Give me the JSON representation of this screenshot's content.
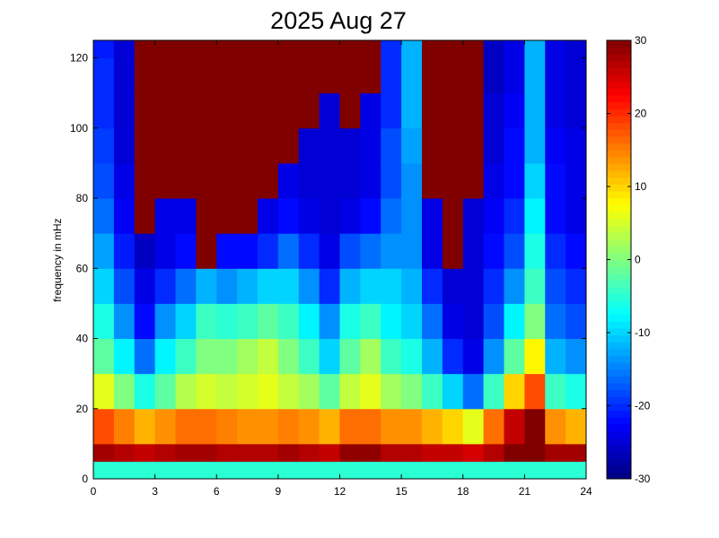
{
  "chart_data": {
    "type": "heatmap",
    "title": "2025 Aug 27",
    "xlabel": "",
    "ylabel": "frequency in mHz",
    "xlim": [
      0,
      24
    ],
    "ylim": [
      0,
      125
    ],
    "xticks": [
      0,
      3,
      6,
      9,
      12,
      15,
      18,
      21,
      24
    ],
    "yticks": [
      0,
      20,
      40,
      60,
      80,
      100,
      120
    ],
    "colorbar": {
      "range": [
        -30,
        30
      ],
      "ticks": [
        -30,
        -20,
        -10,
        0,
        10,
        20,
        30
      ],
      "colormap": "jet"
    },
    "grid": false,
    "time_bins_hours": [
      0,
      1,
      2,
      3,
      4,
      5,
      6,
      7,
      8,
      9,
      10,
      11,
      12,
      13,
      14,
      15,
      16,
      17,
      18,
      19,
      20,
      21,
      22,
      23
    ],
    "freq_bins_mhz": [
      0,
      5,
      10,
      20,
      30,
      40,
      50,
      60,
      70,
      80,
      90,
      100,
      110,
      120
    ],
    "values": [
      [
        -5,
        28,
        18,
        6,
        -2,
        -6,
        -10,
        -13,
        -16,
        -18,
        -19,
        -20,
        -20,
        -21
      ],
      [
        -5,
        27,
        15,
        0,
        -8,
        -14,
        -18,
        -21,
        -23,
        -24,
        -25,
        -25,
        -25,
        -25
      ],
      [
        -5,
        26,
        12,
        -6,
        -16,
        -22,
        -24,
        -26,
        30,
        30,
        30,
        30,
        30,
        30
      ],
      [
        -5,
        27,
        14,
        -2,
        -8,
        -14,
        -20,
        -24,
        -24,
        30,
        30,
        30,
        30,
        30
      ],
      [
        -5,
        28,
        16,
        3,
        -4,
        -10,
        -16,
        -22,
        -24,
        30,
        30,
        30,
        30,
        30
      ],
      [
        -5,
        28,
        16,
        5,
        0,
        -4,
        -12,
        30,
        30,
        30,
        30,
        30,
        30,
        30
      ],
      [
        -5,
        27,
        15,
        4,
        0,
        -5,
        -14,
        -22,
        30,
        30,
        30,
        30,
        30,
        30
      ],
      [
        -5,
        27,
        14,
        5,
        2,
        -4,
        -12,
        -22,
        30,
        30,
        30,
        30,
        30,
        30
      ],
      [
        -5,
        27,
        14,
        6,
        4,
        -2,
        -10,
        -20,
        -24,
        30,
        30,
        30,
        30,
        30
      ],
      [
        -5,
        28,
        15,
        4,
        0,
        -4,
        -10,
        -16,
        -22,
        -24,
        30,
        30,
        30,
        30
      ],
      [
        -5,
        27,
        14,
        2,
        -4,
        -8,
        -14,
        -20,
        -24,
        -25,
        -25,
        30,
        30,
        30
      ],
      [
        -5,
        26,
        12,
        -2,
        -10,
        -14,
        -20,
        -24,
        -25,
        -25,
        -25,
        -25,
        30,
        30
      ],
      [
        -5,
        29,
        16,
        4,
        -2,
        -6,
        -12,
        -18,
        -24,
        -25,
        -25,
        30,
        30,
        30
      ],
      [
        -5,
        29,
        16,
        6,
        2,
        -4,
        -10,
        -16,
        -22,
        -24,
        -24,
        -24,
        30,
        30
      ],
      [
        -5,
        27,
        14,
        2,
        -4,
        -8,
        -10,
        -14,
        -16,
        -18,
        -18,
        -20,
        -20,
        -20
      ],
      [
        -5,
        27,
        14,
        0,
        -6,
        -10,
        -12,
        -14,
        -14,
        -14,
        -13,
        -12,
        -12,
        -12
      ],
      [
        -5,
        26,
        12,
        -4,
        -12,
        -16,
        -20,
        -24,
        -24,
        30,
        30,
        30,
        30,
        30
      ],
      [
        -5,
        26,
        10,
        -10,
        -20,
        -24,
        -25,
        30,
        30,
        30,
        30,
        30,
        30,
        30
      ],
      [
        -5,
        25,
        6,
        -16,
        -24,
        -25,
        -25,
        -25,
        -25,
        30,
        30,
        30,
        30,
        30
      ],
      [
        -5,
        27,
        16,
        -4,
        -14,
        -18,
        -20,
        -22,
        -23,
        -24,
        -25,
        -25,
        -26,
        -26
      ],
      [
        -5,
        30,
        26,
        10,
        -2,
        -8,
        -14,
        -18,
        -20,
        -22,
        -22,
        -23,
        -24,
        -24
      ],
      [
        -5,
        30,
        30,
        18,
        8,
        0,
        -4,
        -6,
        -8,
        -10,
        -12,
        -12,
        -12,
        -12
      ],
      [
        -5,
        28,
        14,
        -4,
        -12,
        -16,
        -18,
        -20,
        -22,
        -22,
        -23,
        -24,
        -24,
        -24
      ],
      [
        -5,
        28,
        12,
        -6,
        -14,
        -18,
        -20,
        -22,
        -24,
        -24,
        -24,
        -25,
        -25,
        -25
      ]
    ]
  }
}
